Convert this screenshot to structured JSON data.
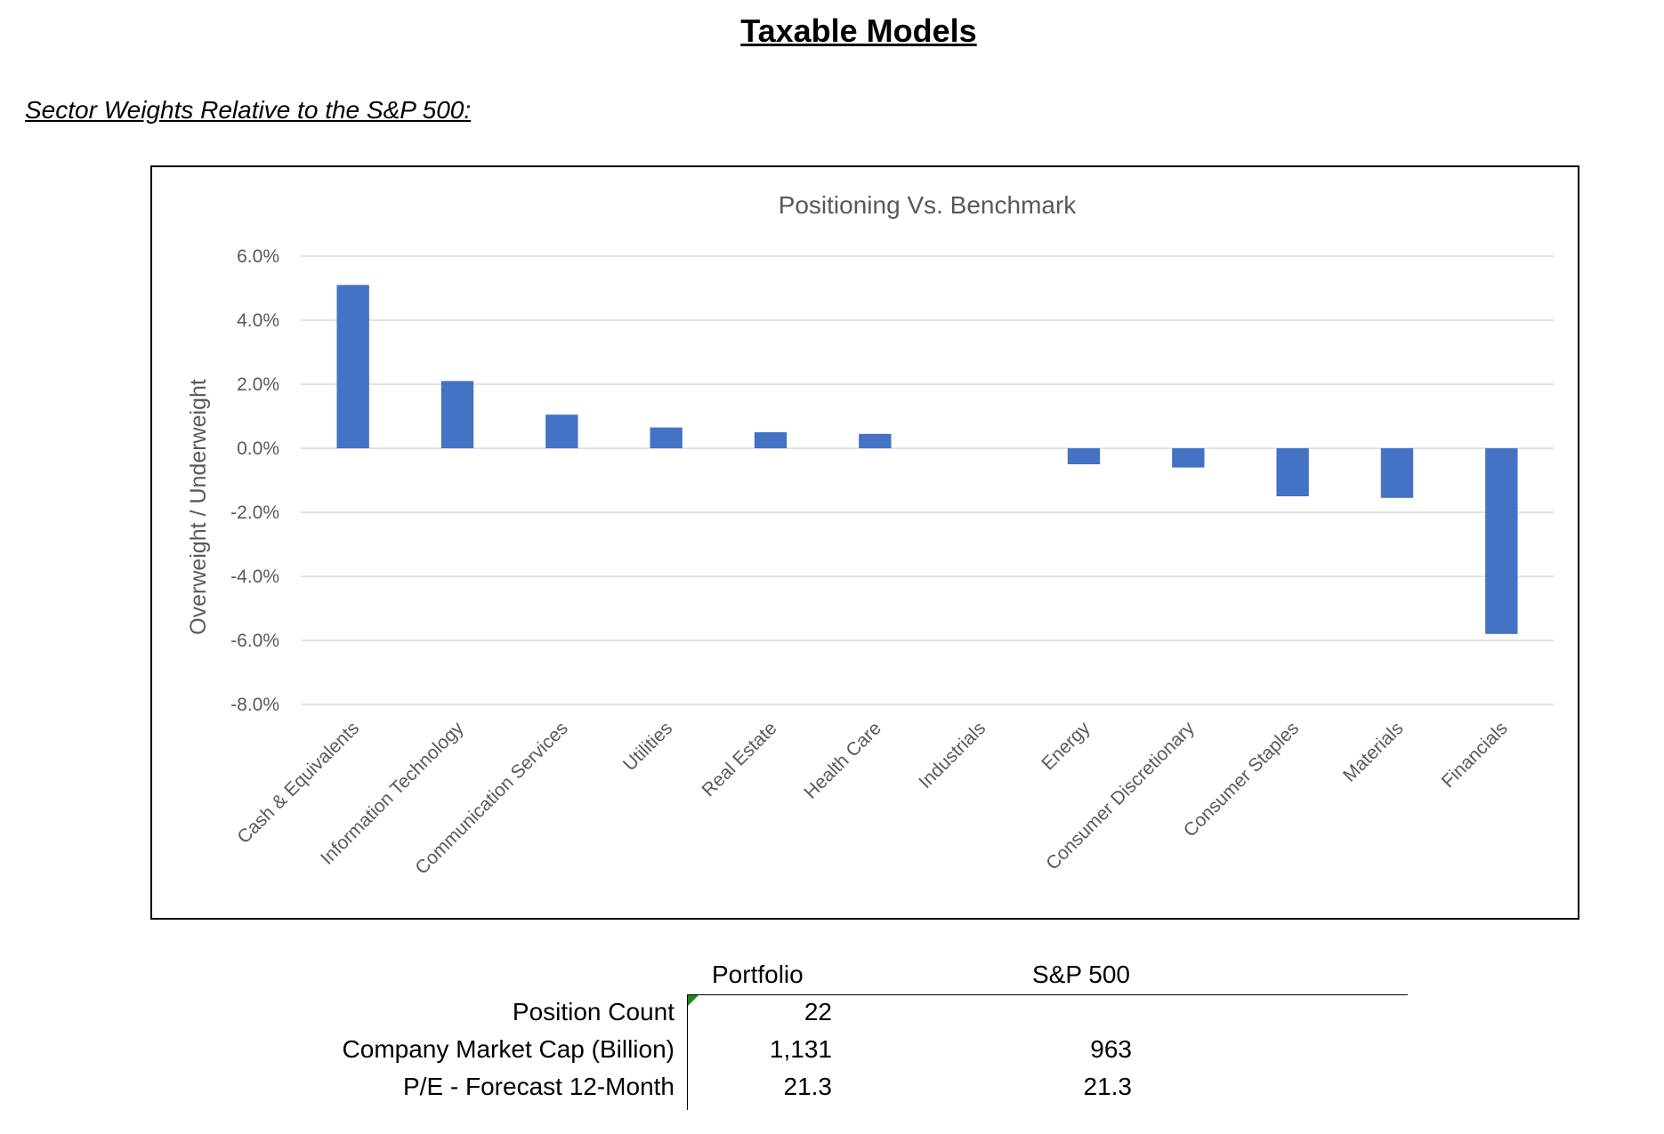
{
  "page": {
    "title": "Taxable Models",
    "subtitle": "Sector Weights Relative to the S&P 500:"
  },
  "chart_data": {
    "type": "bar",
    "title": "Positioning Vs. Benchmark",
    "xlabel": "",
    "ylabel": "Overweight / Underweight",
    "ylim": [
      -8.0,
      6.0
    ],
    "yticks": [
      "6.0%",
      "4.0%",
      "2.0%",
      "0.0%",
      "-2.0%",
      "-4.0%",
      "-6.0%",
      "-8.0%"
    ],
    "grid": true,
    "bar_color": "#4472C4",
    "categories": [
      "Cash & Equivalents",
      "Information Technology",
      "Communication Services",
      "Utilities",
      "Real Estate",
      "Health Care",
      "Industrials",
      "Energy",
      "Consumer Discretionary",
      "Consumer Staples",
      "Materials",
      "Financials"
    ],
    "values": [
      5.1,
      2.1,
      1.05,
      0.65,
      0.5,
      0.45,
      0.0,
      -0.5,
      -0.6,
      -1.5,
      -1.55,
      -5.8
    ]
  },
  "table": {
    "headers": [
      "Portfolio",
      "S&P 500"
    ],
    "rows": [
      {
        "label": "Position Count",
        "portfolio": "22",
        "sp500": ""
      },
      {
        "label": "Company Market Cap (Billion)",
        "portfolio": "1,131",
        "sp500": "963"
      },
      {
        "label": "P/E - Forecast 12-Month",
        "portfolio": "21.3",
        "sp500": "21.3"
      }
    ]
  }
}
